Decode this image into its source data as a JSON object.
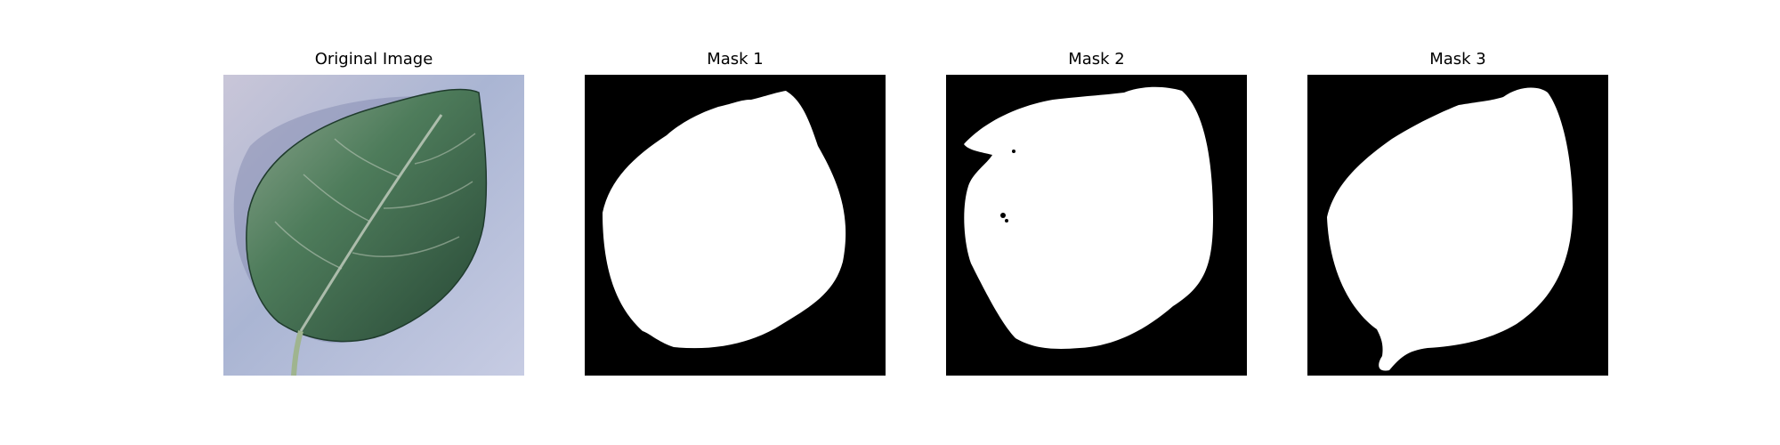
{
  "panels": [
    {
      "title": "Original Image",
      "content": "leaf photograph"
    },
    {
      "title": "Mask 1",
      "content": "binary mask"
    },
    {
      "title": "Mask 2",
      "content": "binary mask"
    },
    {
      "title": "Mask 3",
      "content": "binary mask"
    }
  ],
  "colors": {
    "background": "#ffffff",
    "mask_background": "#000000",
    "mask_foreground": "#ffffff",
    "leaf_dark": "#2f4f3c",
    "leaf_mid": "#4f7a58",
    "paper": "#b8bfd8"
  }
}
